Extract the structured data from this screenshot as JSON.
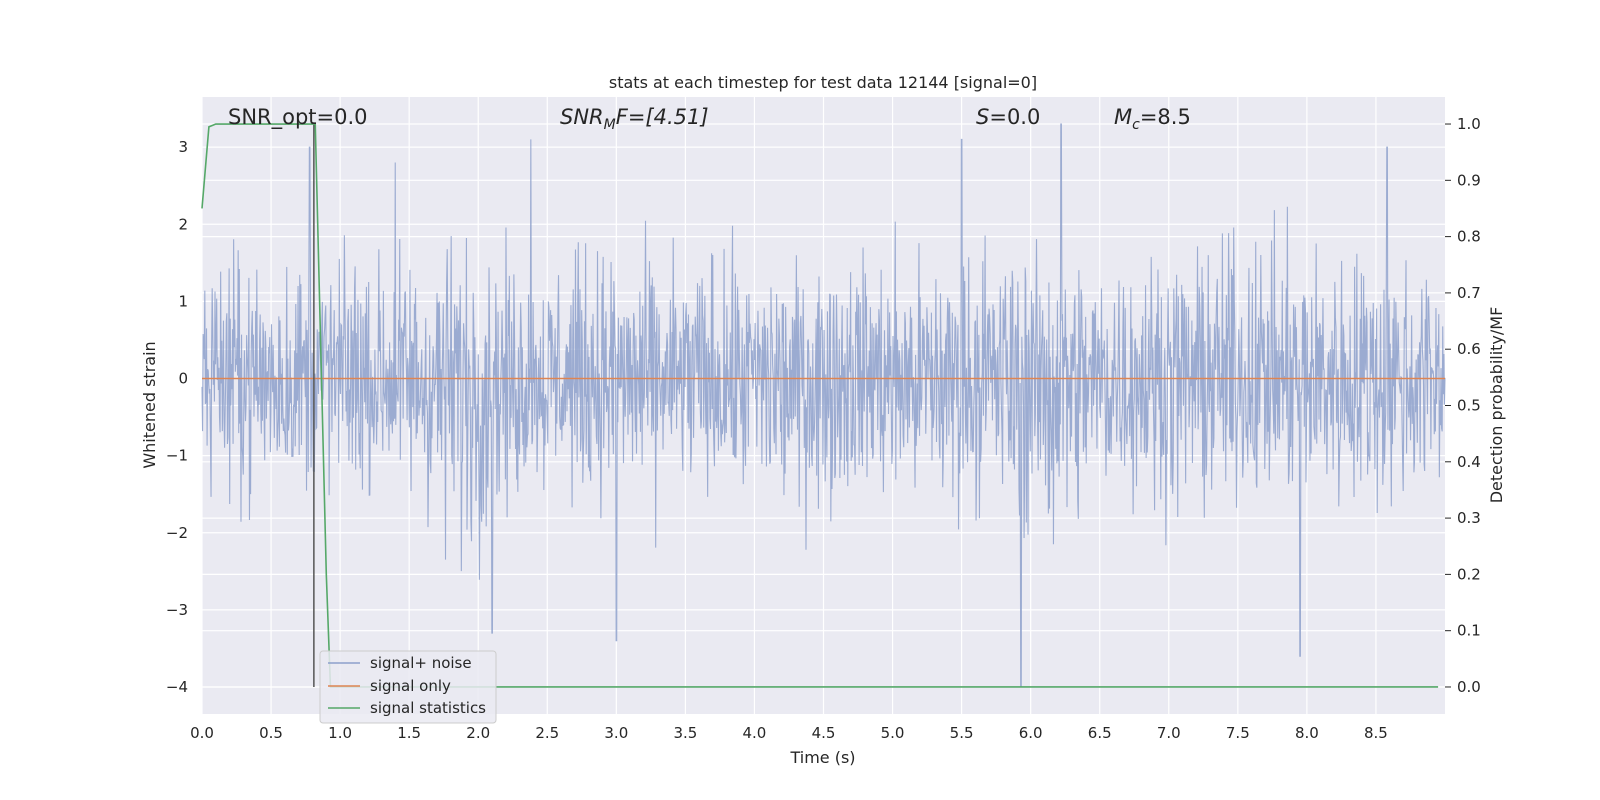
{
  "chart_data": {
    "type": "line",
    "title": "stats at each timestep for test data 12144 [signal=0]",
    "xlabel": "Time (s)",
    "ylabel": "Whitened strain",
    "y2label": "Detection probability/MF",
    "xlim": [
      0.0,
      9.0
    ],
    "ylim": [
      -4.35,
      3.65
    ],
    "y2lim": [
      -0.048,
      1.048
    ],
    "x_ticks": [
      0.0,
      0.5,
      1.0,
      1.5,
      2.0,
      2.5,
      3.0,
      3.5,
      4.0,
      4.5,
      5.0,
      5.5,
      6.0,
      6.5,
      7.0,
      7.5,
      8.0,
      8.5
    ],
    "x_tick_labels": [
      "0.0",
      "0.5",
      "1.0",
      "1.5",
      "2.0",
      "2.5",
      "3.0",
      "3.5",
      "4.0",
      "4.5",
      "5.0",
      "5.5",
      "6.0",
      "6.5",
      "7.0",
      "7.5",
      "8.0",
      "8.5"
    ],
    "y_ticks": [
      3,
      2,
      1,
      0,
      -1,
      -2,
      -3,
      -4
    ],
    "y_tick_labels": [
      "3",
      "2",
      "1",
      "0",
      "−1",
      "−2",
      "−3",
      "−4"
    ],
    "y2_ticks": [
      1.0,
      0.9,
      0.8,
      0.7,
      0.6,
      0.5,
      0.4,
      0.3,
      0.2,
      0.1,
      0.0
    ],
    "y2_tick_labels": [
      "1.0",
      "0.9",
      "0.8",
      "0.7",
      "0.6",
      "0.5",
      "0.4",
      "0.3",
      "0.2",
      "0.1",
      "0.0"
    ],
    "grid": true,
    "legend_position": "lower-left",
    "annotations": {
      "snr_opt": "SNR_opt=0.0",
      "snr_mf_sym": "SNR",
      "snr_mf_sub": "M",
      "snr_mf_rest": "F=[4.51]",
      "s_sym": "S",
      "s_rest": "=0.0",
      "mc_sym": "M",
      "mc_sub": "c",
      "mc_rest": "=8.5"
    },
    "marker_line_x": 0.81,
    "series": [
      {
        "name": "signal+ noise",
        "color": "#8da0cb",
        "style": "noise",
        "x_range": [
          0.0,
          9.0
        ],
        "envelope_upper": [
          2.4,
          2.1,
          2.3,
          2.2,
          2.5,
          2.0,
          2.4,
          2.1,
          2.2,
          2.0,
          2.4,
          2.2,
          2.5,
          2.1,
          2.3,
          2.2,
          2.6,
          2.3,
          2.4,
          2.1
        ],
        "envelope_lower": [
          -1.9,
          -2.2,
          -2.0,
          -2.1,
          -3.4,
          -2.0,
          -2.2,
          -2.4,
          -2.1,
          -2.6,
          -2.0,
          -2.5,
          -2.3,
          -3.2,
          -2.1,
          -2.4,
          -2.2,
          -2.3,
          -2.5,
          -2.1
        ],
        "spikes": [
          [
            0.78,
            3.0
          ],
          [
            1.4,
            2.8
          ],
          [
            2.38,
            3.1
          ],
          [
            2.1,
            -3.3
          ],
          [
            3.0,
            -3.4
          ],
          [
            5.5,
            3.1
          ],
          [
            5.93,
            -4.0
          ],
          [
            6.22,
            3.3
          ],
          [
            7.95,
            -3.6
          ],
          [
            8.58,
            3.0
          ]
        ]
      },
      {
        "name": "signal only",
        "color": "#dd8452",
        "x": [
          0.0,
          9.0
        ],
        "y": [
          0.0,
          0.0
        ]
      },
      {
        "name": "signal statistics",
        "color": "#55a868",
        "axis": "right",
        "x": [
          0.0,
          0.05,
          0.1,
          0.2,
          0.3,
          0.4,
          0.5,
          0.6,
          0.7,
          0.8,
          0.82,
          0.86,
          0.9,
          0.93,
          1.0,
          2.0,
          3.0,
          4.0,
          5.0,
          6.0,
          7.0,
          8.0,
          8.95
        ],
        "y": [
          0.85,
          0.995,
          1.0,
          1.0,
          1.0,
          1.0,
          1.0,
          1.0,
          1.0,
          1.0,
          1.0,
          0.6,
          0.2,
          0.0,
          0.0,
          0.0,
          0.0,
          0.0,
          0.0,
          0.0,
          0.0,
          0.0,
          0.0
        ]
      }
    ]
  }
}
